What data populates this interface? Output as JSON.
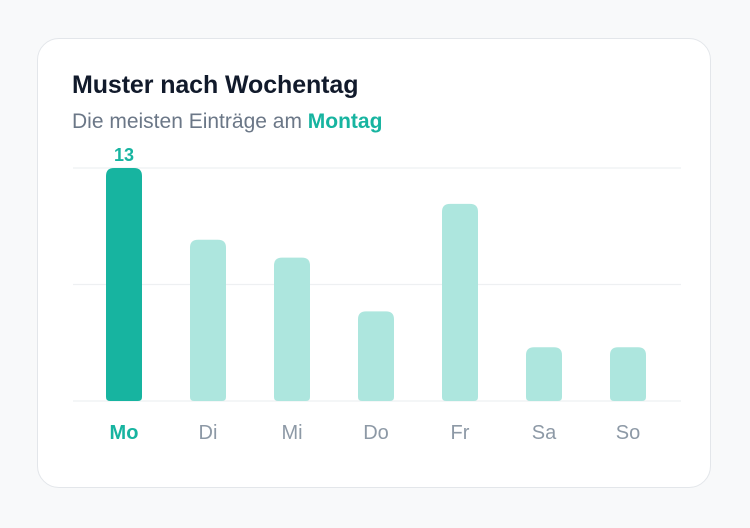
{
  "card": {
    "title": "Muster nach Wochentag",
    "subtitle_prefix": "Die meisten Einträge am ",
    "subtitle_highlight": "Montag"
  },
  "colors": {
    "accent": "#17b4a0",
    "bar_muted": "#ade6de",
    "label_muted": "#8d99a6",
    "grid": "#eef0f2",
    "title": "#111a2b",
    "subtitle": "#6b7787"
  },
  "chart_data": {
    "type": "bar",
    "categories": [
      "Mo",
      "Di",
      "Mi",
      "Do",
      "Fr",
      "Sa",
      "So"
    ],
    "values": [
      13,
      9,
      8,
      5,
      11,
      3,
      3
    ],
    "highlight_index": 0,
    "highlight_label": "13",
    "ylim": [
      0,
      13
    ],
    "grid": true,
    "gridlines": [
      0,
      6.5,
      13
    ],
    "title": "Muster nach Wochentag",
    "xlabel": "",
    "ylabel": ""
  }
}
